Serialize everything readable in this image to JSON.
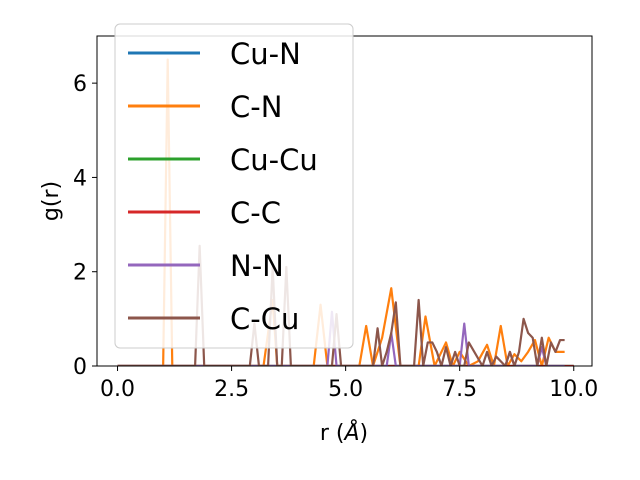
{
  "chart_data": {
    "type": "line",
    "xlabel_main": "r (",
    "xlabel_unit": "Å",
    "xlabel_close": ")",
    "ylabel": "g(r)",
    "xlim": [
      -0.45,
      10.4
    ],
    "ylim": [
      0,
      7
    ],
    "xticks": [
      0.0,
      2.5,
      5.0,
      7.5,
      10.0
    ],
    "xtick_labels": [
      "0.0",
      "2.5",
      "5.0",
      "7.5",
      "10.0"
    ],
    "yticks": [
      0,
      2,
      4,
      6
    ],
    "ytick_labels": [
      "0",
      "2",
      "4",
      "6"
    ],
    "grid": false,
    "legend_position": "upper-left",
    "series": [
      {
        "name": "Cu-N",
        "color": "#1f77b4",
        "x": [
          0,
          10
        ],
        "y": [
          0,
          0
        ]
      },
      {
        "name": "C-N",
        "color": "#ff7f0e",
        "x": [
          0,
          1.0,
          1.1,
          1.2,
          1.3,
          3.2,
          3.4,
          3.5,
          4.3,
          4.45,
          4.6,
          5.3,
          5.45,
          5.6,
          5.8,
          6.0,
          6.2,
          6.6,
          6.75,
          6.95,
          7.2,
          7.35,
          7.5,
          7.7,
          7.9,
          8.1,
          8.25,
          8.4,
          8.55,
          8.7,
          8.85,
          9.0,
          9.15,
          9.3,
          9.45,
          9.6,
          9.8
        ],
        "y": [
          0,
          0,
          6.5,
          0,
          0,
          0,
          1.4,
          0,
          0,
          1.3,
          0,
          0,
          0.85,
          0,
          0.6,
          1.65,
          0,
          0,
          1.05,
          0,
          0.5,
          0,
          0.3,
          0,
          0.1,
          0.45,
          0,
          0.85,
          0,
          0.25,
          0.1,
          0.3,
          0.55,
          0,
          0.6,
          0.3,
          0.3
        ]
      },
      {
        "name": "Cu-Cu",
        "color": "#2ca02c",
        "x": [
          0,
          10
        ],
        "y": [
          0,
          0
        ]
      },
      {
        "name": "C-C",
        "color": "#d62728",
        "x": [
          0,
          10
        ],
        "y": [
          0,
          0
        ]
      },
      {
        "name": "N-N",
        "color": "#9467bd",
        "x": [
          0,
          4.6,
          4.7,
          4.8,
          5.9,
          6.0,
          6.1,
          7.5,
          7.6,
          7.7,
          8.5,
          8.6,
          8.7,
          9.2,
          9.3,
          9.4,
          9.8
        ],
        "y": [
          0,
          0,
          1.15,
          0,
          0,
          0.7,
          0,
          0,
          0.9,
          0,
          0,
          0.3,
          0,
          0,
          0.4,
          0,
          0
        ]
      },
      {
        "name": "C-Cu",
        "color": "#8c564b",
        "x": [
          0,
          1.7,
          1.8,
          1.9,
          2.9,
          3.0,
          3.1,
          3.3,
          3.4,
          3.5,
          3.6,
          3.7,
          3.8,
          3.9,
          4.7,
          4.8,
          4.9,
          5.6,
          5.7,
          5.8,
          5.9,
          6.0,
          6.1,
          6.2,
          6.5,
          6.6,
          6.7,
          6.8,
          6.9,
          7.0,
          7.1,
          7.2,
          7.3,
          7.4,
          7.5,
          7.6,
          7.7,
          8.0,
          8.1,
          8.2,
          8.3,
          8.5,
          8.6,
          8.7,
          8.8,
          8.9,
          9.0,
          9.1,
          9.2,
          9.3,
          9.4,
          9.5,
          9.6,
          9.7,
          9.8
        ],
        "y": [
          0,
          0,
          2.55,
          0,
          0,
          0.9,
          0,
          0,
          2.1,
          0,
          0,
          2.1,
          0,
          0,
          0,
          1.1,
          0,
          0,
          0.8,
          0,
          0.3,
          0.7,
          1.35,
          0,
          0,
          1.4,
          0,
          0.5,
          0.5,
          0.3,
          0,
          0.4,
          0,
          0.3,
          0,
          0,
          0.5,
          0,
          0.3,
          0,
          0.2,
          0,
          0.3,
          0,
          0.3,
          1.0,
          0.7,
          0.6,
          0,
          0.6,
          0,
          0.5,
          0.3,
          0.55,
          0.55
        ]
      }
    ]
  }
}
